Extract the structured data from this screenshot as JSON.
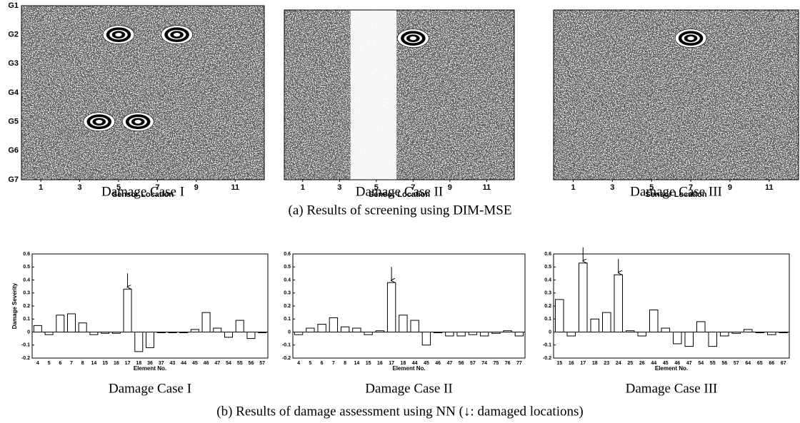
{
  "chart_data": [
    {
      "type": "contour",
      "caption": "Damage Case I",
      "xlabel": "Sensor Location",
      "xlim": [
        0,
        12.5
      ],
      "xticks": [
        1,
        3,
        5,
        7,
        9,
        11
      ],
      "ylim": [
        1,
        7
      ],
      "yticks": [
        {
          "value": 1,
          "label": "G1"
        },
        {
          "value": 2,
          "label": "G2"
        },
        {
          "value": 3,
          "label": "G3"
        },
        {
          "value": 4,
          "label": "G4"
        },
        {
          "value": 5,
          "label": "G5"
        },
        {
          "value": 6,
          "label": "G6"
        },
        {
          "value": 7,
          "label": "G7"
        }
      ],
      "peaks": {
        "x": [
          5,
          8,
          4,
          6
        ],
        "y": [
          2,
          2,
          5,
          5
        ]
      }
    },
    {
      "type": "contour",
      "caption": "Damage Case II",
      "xlabel": "Sensor Location",
      "xlim": [
        0,
        12.5
      ],
      "xticks": [
        1,
        3,
        5,
        7,
        9,
        11
      ],
      "ylim": [
        1,
        7
      ],
      "peaks": {
        "x": [
          7
        ],
        "y": [
          2
        ]
      },
      "blank_xrange": [
        3.6,
        6.1
      ]
    },
    {
      "type": "contour",
      "caption": "Damage Case III",
      "xlabel": "Sensor Location",
      "xlim": [
        0,
        12.5
      ],
      "xticks": [
        1,
        3,
        5,
        7,
        9,
        11
      ],
      "ylim": [
        1,
        7
      ],
      "peaks": {
        "x": [
          7
        ],
        "y": [
          2
        ]
      }
    },
    {
      "type": "bar",
      "caption": "Damage Case I",
      "xlabel": "Element No.",
      "ylabel": "Damage Severity",
      "categories": [
        "4",
        "5",
        "6",
        "7",
        "8",
        "14",
        "15",
        "16",
        "17",
        "18",
        "36",
        "37",
        "43",
        "44",
        "45",
        "46",
        "47",
        "54",
        "55",
        "56",
        "57"
      ],
      "values": [
        0.05,
        -0.02,
        0.13,
        0.14,
        0.07,
        -0.02,
        -0.01,
        -0.01,
        0.33,
        -0.15,
        -0.12,
        0,
        0,
        0,
        0.02,
        0.15,
        0.03,
        -0.04,
        0.09,
        -0.05,
        0
      ],
      "ylim": [
        -0.2,
        0.6
      ],
      "yticks": [
        -0.2,
        -0.1,
        0,
        0.1,
        0.2,
        0.3,
        0.4,
        0.5,
        0.6
      ],
      "damaged": [
        "17"
      ]
    },
    {
      "type": "bar",
      "caption": "Damage Case II",
      "xlabel": "Element No.",
      "categories": [
        "4",
        "5",
        "6",
        "7",
        "8",
        "14",
        "15",
        "16",
        "17",
        "18",
        "44",
        "45",
        "46",
        "47",
        "56",
        "57",
        "74",
        "75",
        "76",
        "77"
      ],
      "values": [
        -0.02,
        0.03,
        0.06,
        0.11,
        0.04,
        0.03,
        -0.02,
        0.01,
        0.38,
        0.13,
        0.09,
        -0.1,
        0,
        -0.03,
        -0.03,
        -0.02,
        -0.03,
        -0.01,
        0.01,
        -0.03
      ],
      "ylim": [
        -0.2,
        0.6
      ],
      "yticks": [
        -0.2,
        -0.1,
        0,
        0.1,
        0.2,
        0.3,
        0.4,
        0.5,
        0.6
      ],
      "damaged": [
        "17"
      ]
    },
    {
      "type": "bar",
      "caption": "Damage Case III",
      "xlabel": "Element No.",
      "categories": [
        "15",
        "16",
        "17",
        "18",
        "23",
        "24",
        "25",
        "26",
        "44",
        "45",
        "46",
        "47",
        "54",
        "55",
        "56",
        "57",
        "64",
        "65",
        "66",
        "67"
      ],
      "values": [
        0.25,
        -0.03,
        0.53,
        0.1,
        0.15,
        0.44,
        0.01,
        -0.03,
        0.17,
        0.03,
        -0.09,
        -0.11,
        0.08,
        -0.11,
        -0.03,
        -0.01,
        0.02,
        0,
        -0.02,
        0
      ],
      "ylim": [
        -0.2,
        0.6
      ],
      "yticks": [
        -0.2,
        -0.1,
        0,
        0.1,
        0.2,
        0.3,
        0.4,
        0.5,
        0.6
      ],
      "damaged": [
        "17",
        "24"
      ]
    }
  ],
  "captions": {
    "a": "(a) Results of screening using DIM-MSE",
    "b": "(b) Results of damage assessment using NN (↓: damaged locations)"
  }
}
